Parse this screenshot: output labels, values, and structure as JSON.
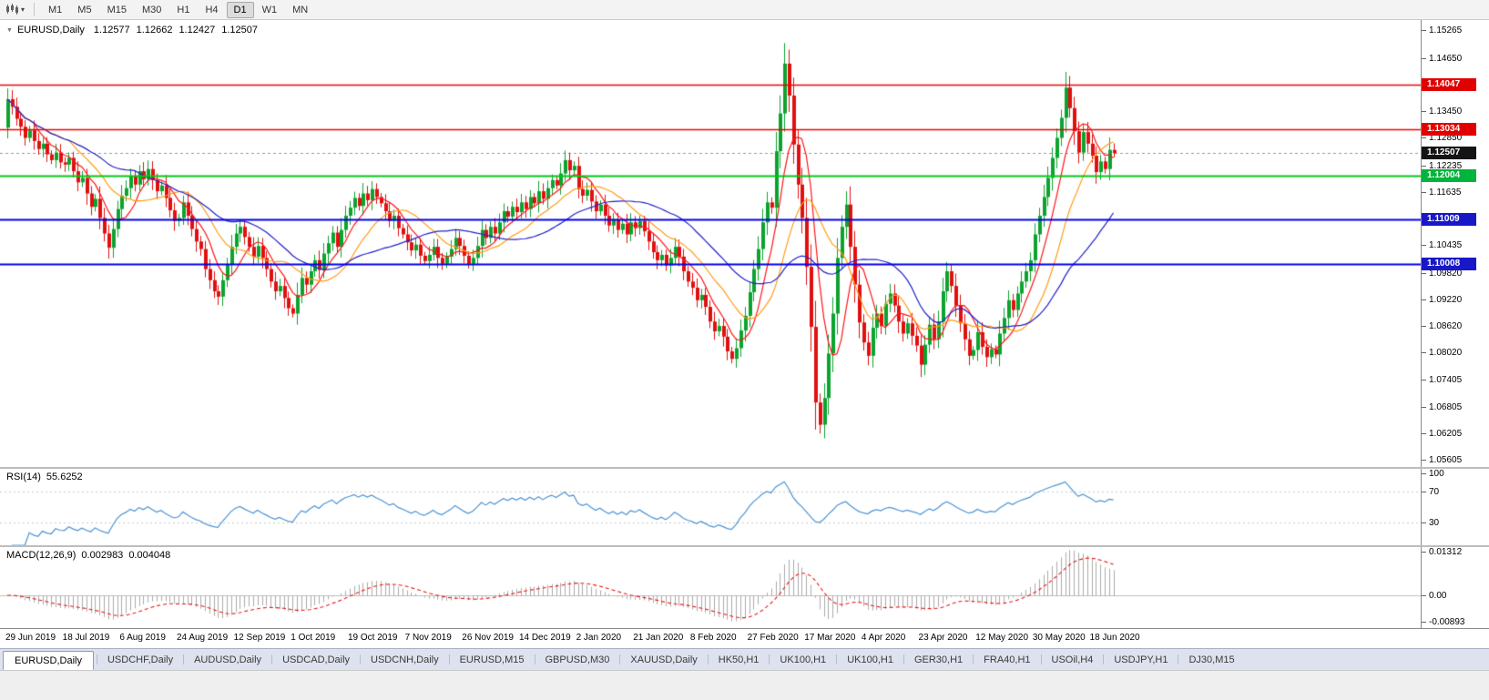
{
  "toolbar": {
    "timeframes": [
      {
        "label": "M1",
        "active": false
      },
      {
        "label": "M5",
        "active": false
      },
      {
        "label": "M15",
        "active": false
      },
      {
        "label": "M30",
        "active": false
      },
      {
        "label": "H1",
        "active": false
      },
      {
        "label": "H4",
        "active": false
      },
      {
        "label": "D1",
        "active": true
      },
      {
        "label": "W1",
        "active": false
      },
      {
        "label": "MN",
        "active": false
      }
    ]
  },
  "main_chart": {
    "header": {
      "symbol": "EURUSD,Daily",
      "open": "1.12577",
      "high": "1.12662",
      "low": "1.12427",
      "close": "1.12507"
    },
    "price_top": 1.155,
    "price_bottom": 1.0545,
    "y_labels": [
      "1.15265",
      "1.14650",
      "1.13450",
      "1.12850",
      "1.12235",
      "1.11635",
      "1.10435",
      "1.09820",
      "1.09220",
      "1.08620",
      "1.08020",
      "1.07405",
      "1.06805",
      "1.06205",
      "1.05605"
    ],
    "price_badges": [
      {
        "text": "1.14047",
        "price": 1.14047,
        "color": "#e10000"
      },
      {
        "text": "1.13034",
        "price": 1.13034,
        "color": "#e10000"
      },
      {
        "text": "1.12507",
        "price": 1.12507,
        "color": "#141414"
      },
      {
        "text": "1.12004",
        "price": 1.12004,
        "color": "#00b43c"
      },
      {
        "text": "1.11009",
        "price": 1.11009,
        "color": "#1818c8"
      },
      {
        "text": "1.10008",
        "price": 1.10008,
        "color": "#1818c8"
      }
    ],
    "hlines": [
      {
        "price": 1.14047,
        "color": "#f00000",
        "width": 1.4
      },
      {
        "price": 1.13034,
        "color": "#f00000",
        "width": 1.4
      },
      {
        "price": 1.12004,
        "color": "#00c814",
        "width": 1.8
      },
      {
        "price": 1.11009,
        "color": "#0000e6",
        "width": 1.8
      },
      {
        "price": 1.10008,
        "color": "#0000e6",
        "width": 1.8
      }
    ],
    "current_price_line": {
      "price": 1.12507,
      "color": "#999999"
    }
  },
  "rsi_panel": {
    "name": "RSI(14)",
    "value": "55.6252",
    "period": 14,
    "levels": [
      70,
      30
    ],
    "y_labels": [
      {
        "text": "100",
        "value": 100
      },
      {
        "text": "70",
        "value": 70
      },
      {
        "text": "30",
        "value": 30
      }
    ],
    "line_color": "#4a93d4"
  },
  "macd_panel": {
    "name": "MACD(12,26,9)",
    "value_main": "0.002983",
    "value_signal": "0.004048",
    "fast": 12,
    "slow": 26,
    "signal": 9,
    "range_max": 0.01312,
    "range_min": -0.00893,
    "y_labels": [
      {
        "text": "0.01312",
        "value": 0.01312
      },
      {
        "text": "0.00",
        "value": 0
      },
      {
        "text": "-0.00893",
        "value": -0.00893
      }
    ],
    "bar_color": "#ababab",
    "signal_color": "#e81616"
  },
  "x_axis": {
    "label_step": 13,
    "labels": [
      "29 Jun 2019",
      "18 Jul 2019",
      "6 Aug 2019",
      "24 Aug 2019",
      "12 Sep 2019",
      "1 Oct 2019",
      "19 Oct 2019",
      "7 Nov 2019",
      "26 Nov 2019",
      "14 Dec 2019",
      "2 Jan 2020",
      "21 Jan 2020",
      "8 Feb 2020",
      "27 Feb 2020",
      "17 Mar 2020",
      "4 Apr 2020",
      "23 Apr 2020",
      "12 May 2020",
      "30 May 2020",
      "18 Jun 2020"
    ]
  },
  "tabs": [
    {
      "label": "EURUSD,Daily",
      "active": true
    },
    {
      "label": "USDCHF,Daily",
      "active": false
    },
    {
      "label": "AUDUSD,Daily",
      "active": false
    },
    {
      "label": "USDCAD,Daily",
      "active": false
    },
    {
      "label": "USDCNH,Daily",
      "active": false
    },
    {
      "label": "EURUSD,M15",
      "active": false
    },
    {
      "label": "GBPUSD,M30",
      "active": false
    },
    {
      "label": "XAUUSD,Daily",
      "active": false
    },
    {
      "label": "HK50,H1",
      "active": false
    },
    {
      "label": "UK100,H1",
      "active": false
    },
    {
      "label": "UK100,H1",
      "active": false
    },
    {
      "label": "GER30,H1",
      "active": false
    },
    {
      "label": "FRA40,H1",
      "active": false
    },
    {
      "label": "USOil,H4",
      "active": false
    },
    {
      "label": "USDJPY,H1",
      "active": false
    },
    {
      "label": "DJ30,M15",
      "active": false
    }
  ],
  "chart_data": {
    "type": "candlestick",
    "symbol": "EURUSD",
    "timeframe": "Daily",
    "up_color": "#0ca32e",
    "down_color": "#e01010",
    "first_open": 1.1308,
    "closes": [
      1.1372,
      1.1355,
      1.1328,
      1.131,
      1.1285,
      1.1302,
      1.1278,
      1.126,
      1.1272,
      1.1248,
      1.1235,
      1.1252,
      1.123,
      1.1225,
      1.124,
      1.121,
      1.1185,
      1.1195,
      1.116,
      1.113,
      1.1148,
      1.1105,
      1.107,
      1.1038,
      1.108,
      1.1125,
      1.1155,
      1.1172,
      1.1198,
      1.118,
      1.121,
      1.1192,
      1.1215,
      1.119,
      1.1165,
      1.1178,
      1.115,
      1.1122,
      1.1098,
      1.1105,
      1.114,
      1.111,
      1.108,
      1.1052,
      1.1035,
      1.099,
      1.0965,
      1.094,
      1.0928,
      1.0965,
      1.1,
      1.104,
      1.107,
      1.1085,
      1.1062,
      1.104,
      1.1018,
      1.1042,
      1.1015,
      1.099,
      1.0962,
      1.094,
      1.0952,
      1.0925,
      1.0902,
      1.089,
      1.0932,
      1.097,
      1.0955,
      1.0985,
      1.101,
      1.0988,
      1.1025,
      1.1048,
      1.1072,
      1.104,
      1.1078,
      1.111,
      1.1128,
      1.115,
      1.1132,
      1.116,
      1.1145,
      1.117,
      1.1152,
      1.1138,
      1.112,
      1.1098,
      1.111,
      1.1082,
      1.1068,
      1.105,
      1.1032,
      1.1045,
      1.102,
      1.1008,
      1.1022,
      1.104,
      1.1015,
      1.1002,
      1.1018,
      1.1035,
      1.106,
      1.1042,
      1.102,
      1.1002,
      1.1015,
      1.1042,
      1.1078,
      1.106,
      1.1085,
      1.107,
      1.1095,
      1.112,
      1.1108,
      1.113,
      1.1118,
      1.114,
      1.1125,
      1.1152,
      1.1138,
      1.1165,
      1.1148,
      1.1172,
      1.119,
      1.1178,
      1.1205,
      1.1235,
      1.1212,
      1.1222,
      1.117,
      1.1155,
      1.1168,
      1.1142,
      1.112,
      1.1135,
      1.111,
      1.1088,
      1.1102,
      1.1078,
      1.1092,
      1.1068,
      1.1095,
      1.1082,
      1.1098,
      1.1075,
      1.1052,
      1.1028,
      1.101,
      1.1022,
      1.0998,
      1.1015,
      1.104,
      1.1018,
      1.0985,
      1.0962,
      1.0948,
      1.092,
      1.0932,
      1.0905,
      1.0872,
      1.085,
      1.0862,
      1.0838,
      1.0805,
      1.0788,
      1.0812,
      1.0852,
      1.0885,
      1.0938,
      1.099,
      1.1035,
      1.1095,
      1.114,
      1.1128,
      1.1255,
      1.134,
      1.1452,
      1.138,
      1.127,
      1.118,
      1.1105,
      1.0995,
      1.086,
      1.069,
      1.064,
      1.07,
      1.08,
      1.089,
      1.1015,
      1.1085,
      1.1135,
      1.104,
      1.0955,
      1.087,
      1.0825,
      1.0795,
      1.0858,
      1.089,
      1.0862,
      1.0912,
      1.0935,
      1.0908,
      1.0872,
      1.0845,
      1.0868,
      1.084,
      1.0818,
      1.0775,
      1.082,
      1.0865,
      1.0832,
      1.0872,
      1.094,
      1.0985,
      1.0952,
      1.0908,
      1.0868,
      1.0832,
      1.0795,
      1.0808,
      1.0848,
      1.0815,
      1.0792,
      1.081,
      1.0798,
      1.0845,
      1.088,
      1.092,
      1.0898,
      1.0935,
      1.0962,
      1.0985,
      1.101,
      1.1068,
      1.111,
      1.1152,
      1.1195,
      1.124,
      1.1285,
      1.133,
      1.1398,
      1.1352,
      1.13,
      1.1252,
      1.1298,
      1.1272,
      1.1245,
      1.1208,
      1.1232,
      1.1215,
      1.1258,
      1.12507
    ],
    "moving_averages": [
      {
        "type": "sma",
        "period": 7,
        "color": "#ff1414"
      },
      {
        "type": "sma",
        "period": 15,
        "color": "#ff9c14"
      },
      {
        "type": "sma",
        "period": 30,
        "color": "#2020cc"
      }
    ]
  }
}
